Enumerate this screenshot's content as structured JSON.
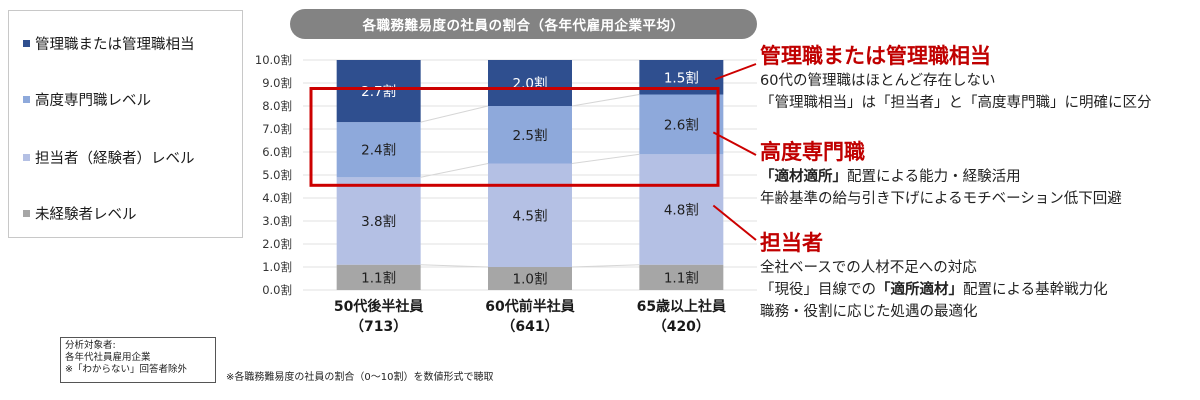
{
  "legend": [
    {
      "label": "管理職または管理職相当",
      "color": "#2f4f8f"
    },
    {
      "label": "高度専門職レベル",
      "color": "#8ea9db"
    },
    {
      "label": "担当者（経験者）レベル",
      "color": "#b4c0e4"
    },
    {
      "label": "未経験者レベル",
      "color": "#a6a6a6"
    }
  ],
  "chart_data": {
    "type": "bar",
    "stacked": true,
    "title": "各職務難易度の社員の割合（各年代雇用企業平均）",
    "categories": [
      {
        "name": "50代後半社員",
        "count": "（713）"
      },
      {
        "name": "60代前半社員",
        "count": "（641）"
      },
      {
        "name": "65歳以上社員",
        "count": "（420）"
      }
    ],
    "series": [
      {
        "name": "未経験者レベル",
        "color": "#a6a6a6",
        "values": [
          1.1,
          1.0,
          1.1
        ],
        "labels": [
          "1.1割",
          "1.0割",
          "1.1割"
        ]
      },
      {
        "name": "担当者（経験者）レベル",
        "color": "#b4c0e4",
        "values": [
          3.8,
          4.5,
          4.8
        ],
        "labels": [
          "3.8割",
          "4.5割",
          "4.8割"
        ]
      },
      {
        "name": "高度専門職レベル",
        "color": "#8ea9db",
        "values": [
          2.4,
          2.5,
          2.6
        ],
        "labels": [
          "2.4割",
          "2.5割",
          "2.6割"
        ]
      },
      {
        "name": "管理職または管理職相当",
        "color": "#2f4f8f",
        "values": [
          2.7,
          2.0,
          1.5
        ],
        "labels": [
          "2.7割",
          "2.0割",
          "1.5割"
        ]
      }
    ],
    "yticks": [
      "0.0割",
      "1.0割",
      "2.0割",
      "3.0割",
      "4.0割",
      "5.0割",
      "6.0割",
      "7.0割",
      "8.0割",
      "9.0割",
      "10.0割"
    ],
    "ylim": [
      0,
      10
    ],
    "highlight_series": "高度専門職レベル",
    "highlight_color": "#cc0000"
  },
  "annotations": [
    {
      "head": "管理職または管理職相当",
      "lines": [
        "60代の管理職はほとんど存在しない",
        "「管理職相当」は「担当者」と「高度専門職」に明確に区分"
      ]
    },
    {
      "head": "高度専門職",
      "line1_bold": "「適材適所」",
      "line1_rest": "配置による能力・経験活用",
      "line2": "年齢基準の給与引き下げによるモチベーション低下回避"
    },
    {
      "head": "担当者",
      "line1": "全社ベースでの人材不足への対応",
      "line2_pre": "「現役」目線での",
      "line2_bold": "「適所適材」",
      "line2_post": "配置による基幹戦力化",
      "line3": "職務・役割に応じた処遇の最適化"
    }
  ],
  "note": {
    "line1": "分析対象者:",
    "line2": "各年代社員雇用企業",
    "line3": "※「わからない」回答者除外"
  },
  "footnote": "※各職務難易度の社員の割合（0～10割）を数値形式で聴取"
}
